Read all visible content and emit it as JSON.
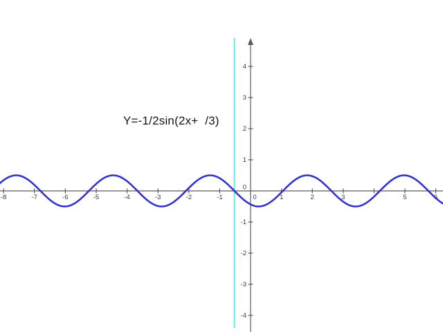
{
  "title": {
    "text": "Y=-1/2sin(2x+  /3)"
  },
  "colors": {
    "background": "#ffffff",
    "curve": "#3333cc",
    "vertical_line": "#76e9e9",
    "axis": "#5a5a5a",
    "tick_label": "#3a3a3a",
    "title_text": "#141414"
  },
  "chart_data": {
    "type": "line",
    "title": "Y=-1/2sin(2x+  /3)",
    "function": {
      "displayed_label": "Y=-1/2sin(2x+  /3)",
      "amplitude": -0.5,
      "angular_frequency": 2,
      "phase_rad": 1.0471975512,
      "form": "y = a*sin(b*x + c)"
    },
    "vertical_line_x": -0.5235987756,
    "x_axis_visible_range": [
      -8.12,
      6.23
    ],
    "y_axis_visible_range": [
      -4.53,
      4.78
    ],
    "grid": false,
    "legend": "none",
    "x_ticks": [
      {
        "v": -8,
        "label": "-8"
      },
      {
        "v": -7,
        "label": "-7"
      },
      {
        "v": -6,
        "label": "-6"
      },
      {
        "v": -5,
        "label": "-5"
      },
      {
        "v": -4,
        "label": "-4"
      },
      {
        "v": -3,
        "label": "-3"
      },
      {
        "v": -2,
        "label": "-2"
      },
      {
        "v": -1,
        "label": "-1"
      },
      {
        "v": 0,
        "label": "0"
      },
      {
        "v": 1,
        "label": "1"
      },
      {
        "v": 2,
        "label": "2"
      },
      {
        "v": 3,
        "label": "3"
      },
      {
        "v": 4,
        "label": ""
      },
      {
        "v": 5,
        "label": "5"
      },
      {
        "v": 6,
        "label": "6"
      }
    ],
    "y_ticks": [
      {
        "v": -4,
        "label": "-4"
      },
      {
        "v": -3,
        "label": "-3"
      },
      {
        "v": -2,
        "label": "-2"
      },
      {
        "v": -1,
        "label": "-1"
      },
      {
        "v": 0,
        "label": "0"
      },
      {
        "v": 1,
        "label": "1"
      },
      {
        "v": 2,
        "label": "2"
      },
      {
        "v": 3,
        "label": "3"
      },
      {
        "v": 4,
        "label": "4"
      }
    ]
  }
}
